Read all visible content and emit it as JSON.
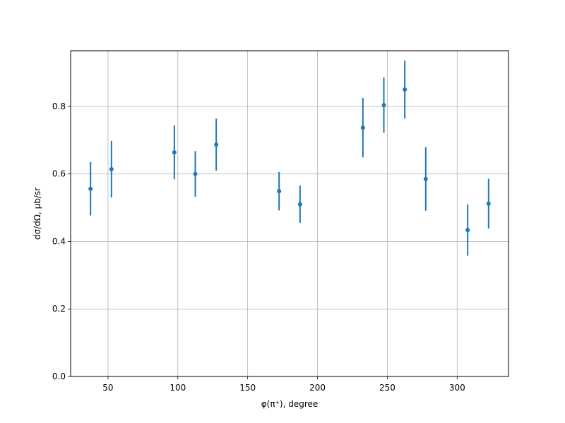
{
  "chart_data": {
    "type": "errorbar",
    "x_label": "φ(π⁺), degree",
    "y_label": "dσ/dΩ, μb/sr",
    "x": [
      37.5,
      52.5,
      97.5,
      112.5,
      127.5,
      172.5,
      187.5,
      232.5,
      247.5,
      262.5,
      277.5,
      307.5,
      322.5
    ],
    "series": [
      {
        "color": "#1f77b4",
        "values": [
          0.556,
          0.614,
          0.664,
          0.6,
          0.687,
          0.549,
          0.51,
          0.737,
          0.804,
          0.85,
          0.585,
          0.434,
          0.512
        ],
        "errors": [
          0.079,
          0.084,
          0.08,
          0.068,
          0.077,
          0.057,
          0.055,
          0.088,
          0.082,
          0.086,
          0.094,
          0.076,
          0.074
        ]
      }
    ],
    "xlim": [
      23.25,
      336.75
    ],
    "ylim": [
      0,
      0.965
    ],
    "xticks": [
      50,
      100,
      150,
      200,
      250,
      300
    ],
    "yticks": [
      {
        "value": 0,
        "label": "0.0"
      },
      {
        "value": 0.2,
        "label": "0.2"
      },
      {
        "value": 0.4,
        "label": "0.4"
      },
      {
        "value": 0.6,
        "label": "0.6"
      },
      {
        "value": 0.8,
        "label": "0.8"
      }
    ],
    "grid": true
  }
}
